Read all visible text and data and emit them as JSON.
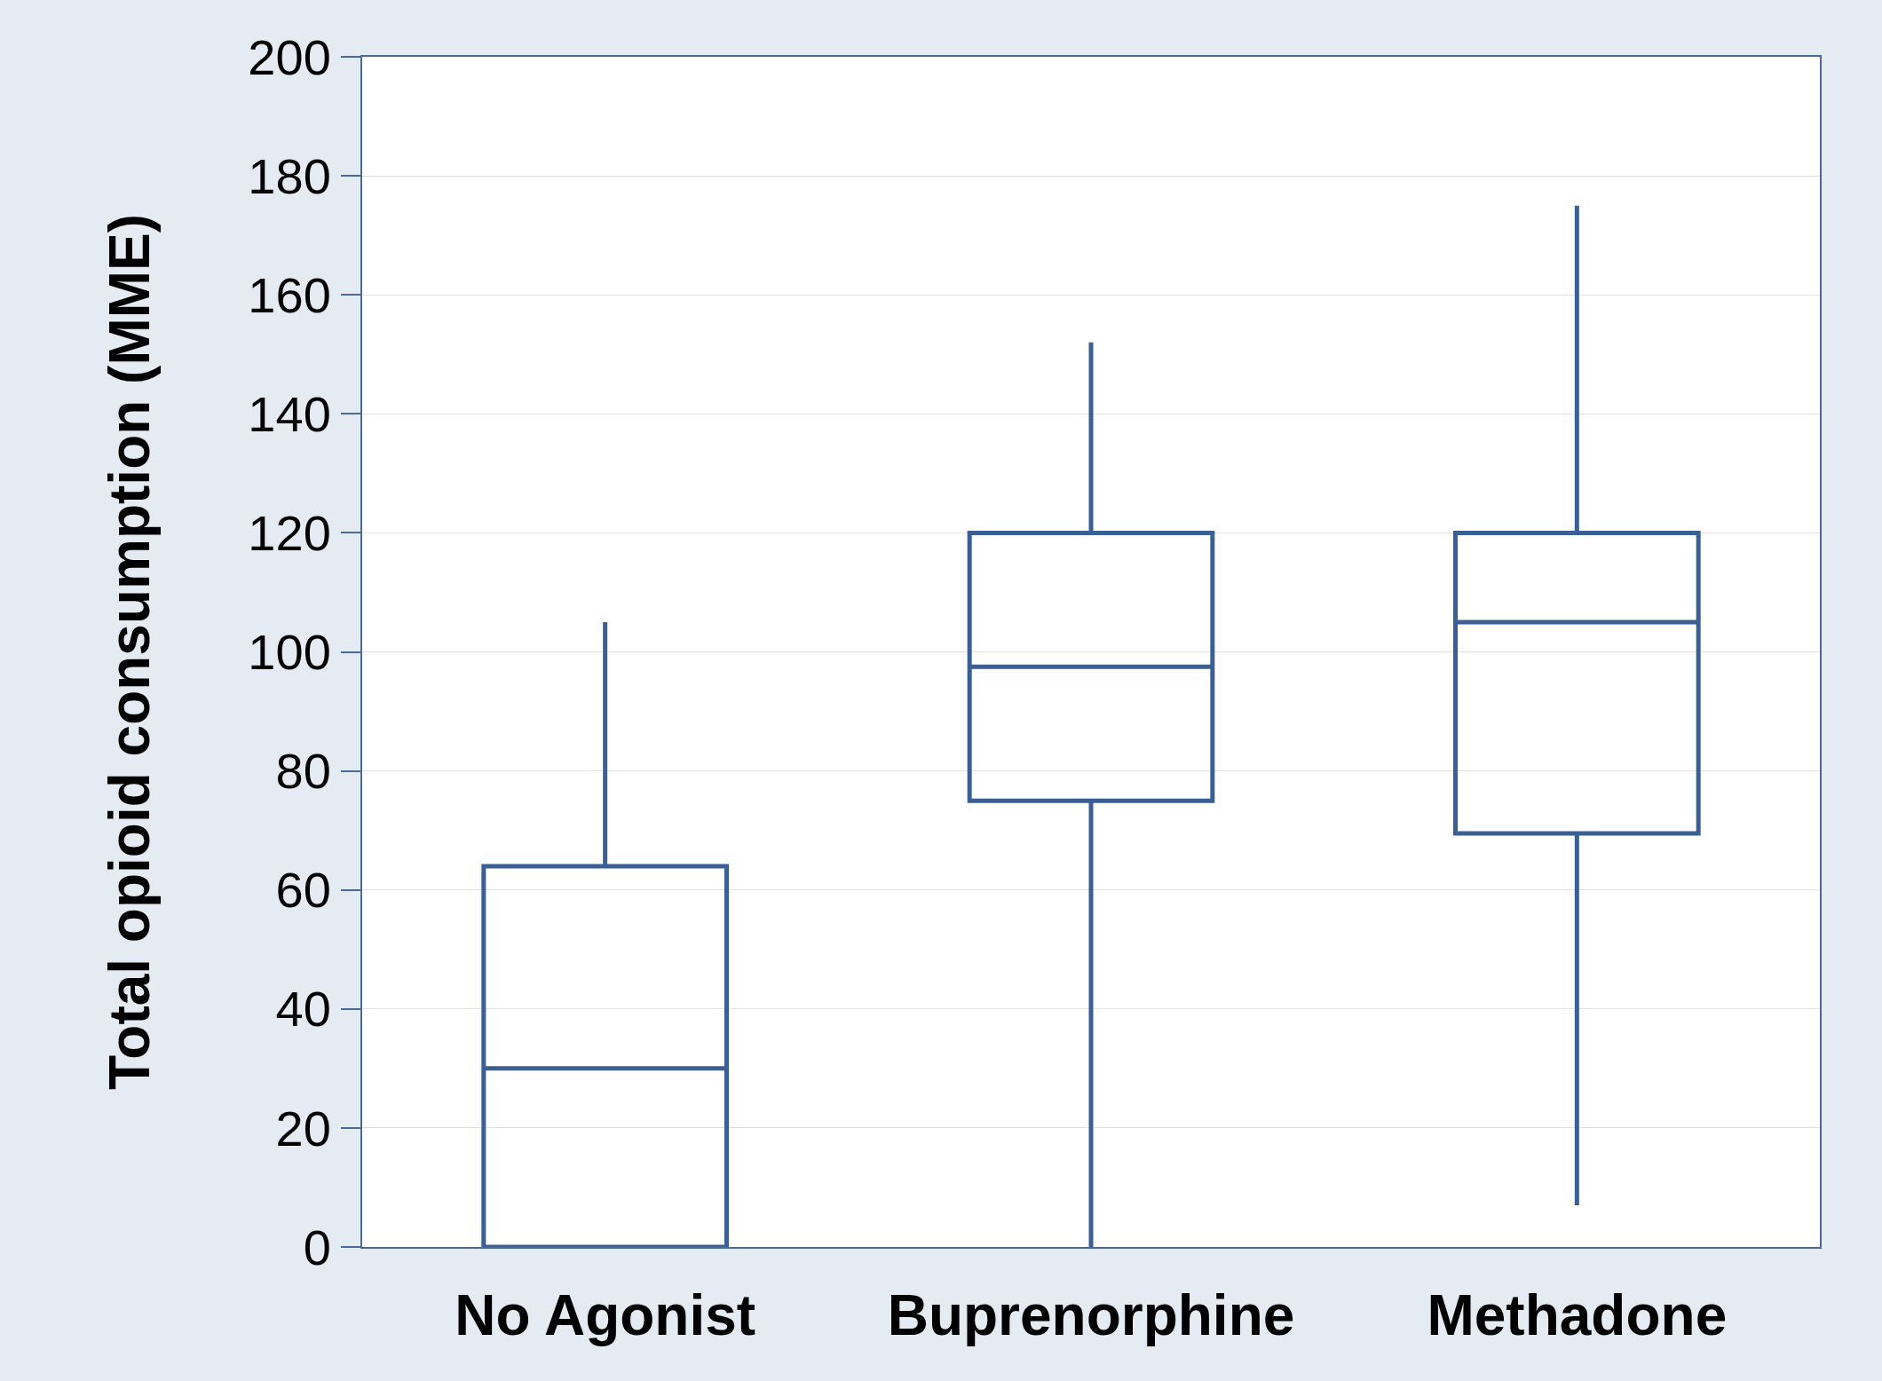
{
  "chart_data": {
    "type": "box",
    "ylabel": "Total opioid consumption (MME)",
    "categories": [
      "No Agonist",
      "Buprenorphine",
      "Methadone"
    ],
    "boxes": [
      {
        "low": 0,
        "q1": 0,
        "median": 30,
        "q3": 64,
        "high": 105
      },
      {
        "low": 0,
        "q1": 75,
        "median": 97.5,
        "q3": 120,
        "high": 152
      },
      {
        "low": 7,
        "q1": 69.5,
        "median": 105,
        "q3": 120,
        "high": 175
      }
    ],
    "color": "#3a5f94",
    "ylim": [
      0,
      200
    ],
    "yticks": [
      0,
      20,
      40,
      60,
      80,
      100,
      120,
      140,
      160,
      180,
      200
    ],
    "grid": "y"
  }
}
